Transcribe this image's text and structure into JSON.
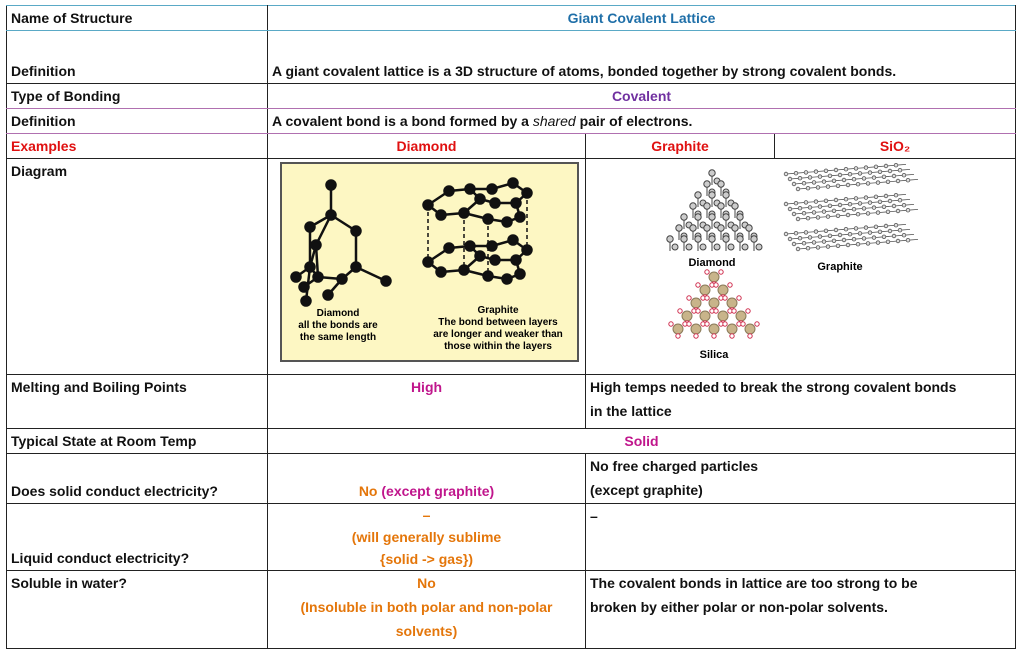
{
  "rows": {
    "name": {
      "label": "Name of Structure",
      "value": "Giant Covalent Lattice"
    },
    "definition1": {
      "label": "Definition",
      "value": "A giant covalent lattice is a 3D structure of atoms, bonded together by strong covalent bonds."
    },
    "bonding": {
      "label": "Type of Bonding",
      "value": "Covalent"
    },
    "definition2": {
      "label": "Definition",
      "value_before": "A covalent bond is a bond formed by a",
      "value_em": "shared",
      "value_after": "pair of electrons."
    },
    "examples": {
      "label": "Examples",
      "items": [
        "Diamond",
        "Graphite",
        "SiO₂"
      ]
    },
    "diagram": {
      "label": "Diagram",
      "left_captions": {
        "diamond": [
          "Diamond",
          "all the bonds are",
          "the same length"
        ],
        "graphite": [
          "Graphite",
          "The bond between layers",
          "are longer and weaker than",
          "those within the layers"
        ]
      },
      "right_captions": {
        "diamond": "Diamond",
        "graphite": "Graphite",
        "silica": "Silica"
      }
    },
    "melting": {
      "label": "Melting and Boiling Points",
      "value": "High",
      "explanation_1": "High temps needed to break the strong covalent bonds",
      "explanation_2": "in the lattice"
    },
    "state": {
      "label": "Typical State at Room Temp",
      "value": "Solid"
    },
    "solid_conduct": {
      "label": "Does solid conduct electricity?",
      "value_no": "No",
      "value_except": "(except graphite)",
      "explanation_1": "No free charged particles",
      "explanation_2": "(except graphite)"
    },
    "liquid_conduct": {
      "label": "Liquid conduct electricity?",
      "value_1": "–",
      "value_2": "(will generally sublime",
      "value_3": "{solid -> gas})",
      "explanation": "–"
    },
    "soluble": {
      "label": "Soluble in water?",
      "value_1": "No",
      "value_2": "(Insoluble in both polar and non-polar",
      "value_3": "solvents)",
      "explanation_1": "The covalent bonds in lattice are too strong to be",
      "explanation_2": "broken by either polar or non-polar solvents."
    }
  },
  "colors": {
    "title": "#1f6fa8",
    "bonding": "#7030a0",
    "examples": "#e01010",
    "highlight": "#c0168c",
    "orange": "#e4760a",
    "figure_bg": "#fdf7c3"
  }
}
